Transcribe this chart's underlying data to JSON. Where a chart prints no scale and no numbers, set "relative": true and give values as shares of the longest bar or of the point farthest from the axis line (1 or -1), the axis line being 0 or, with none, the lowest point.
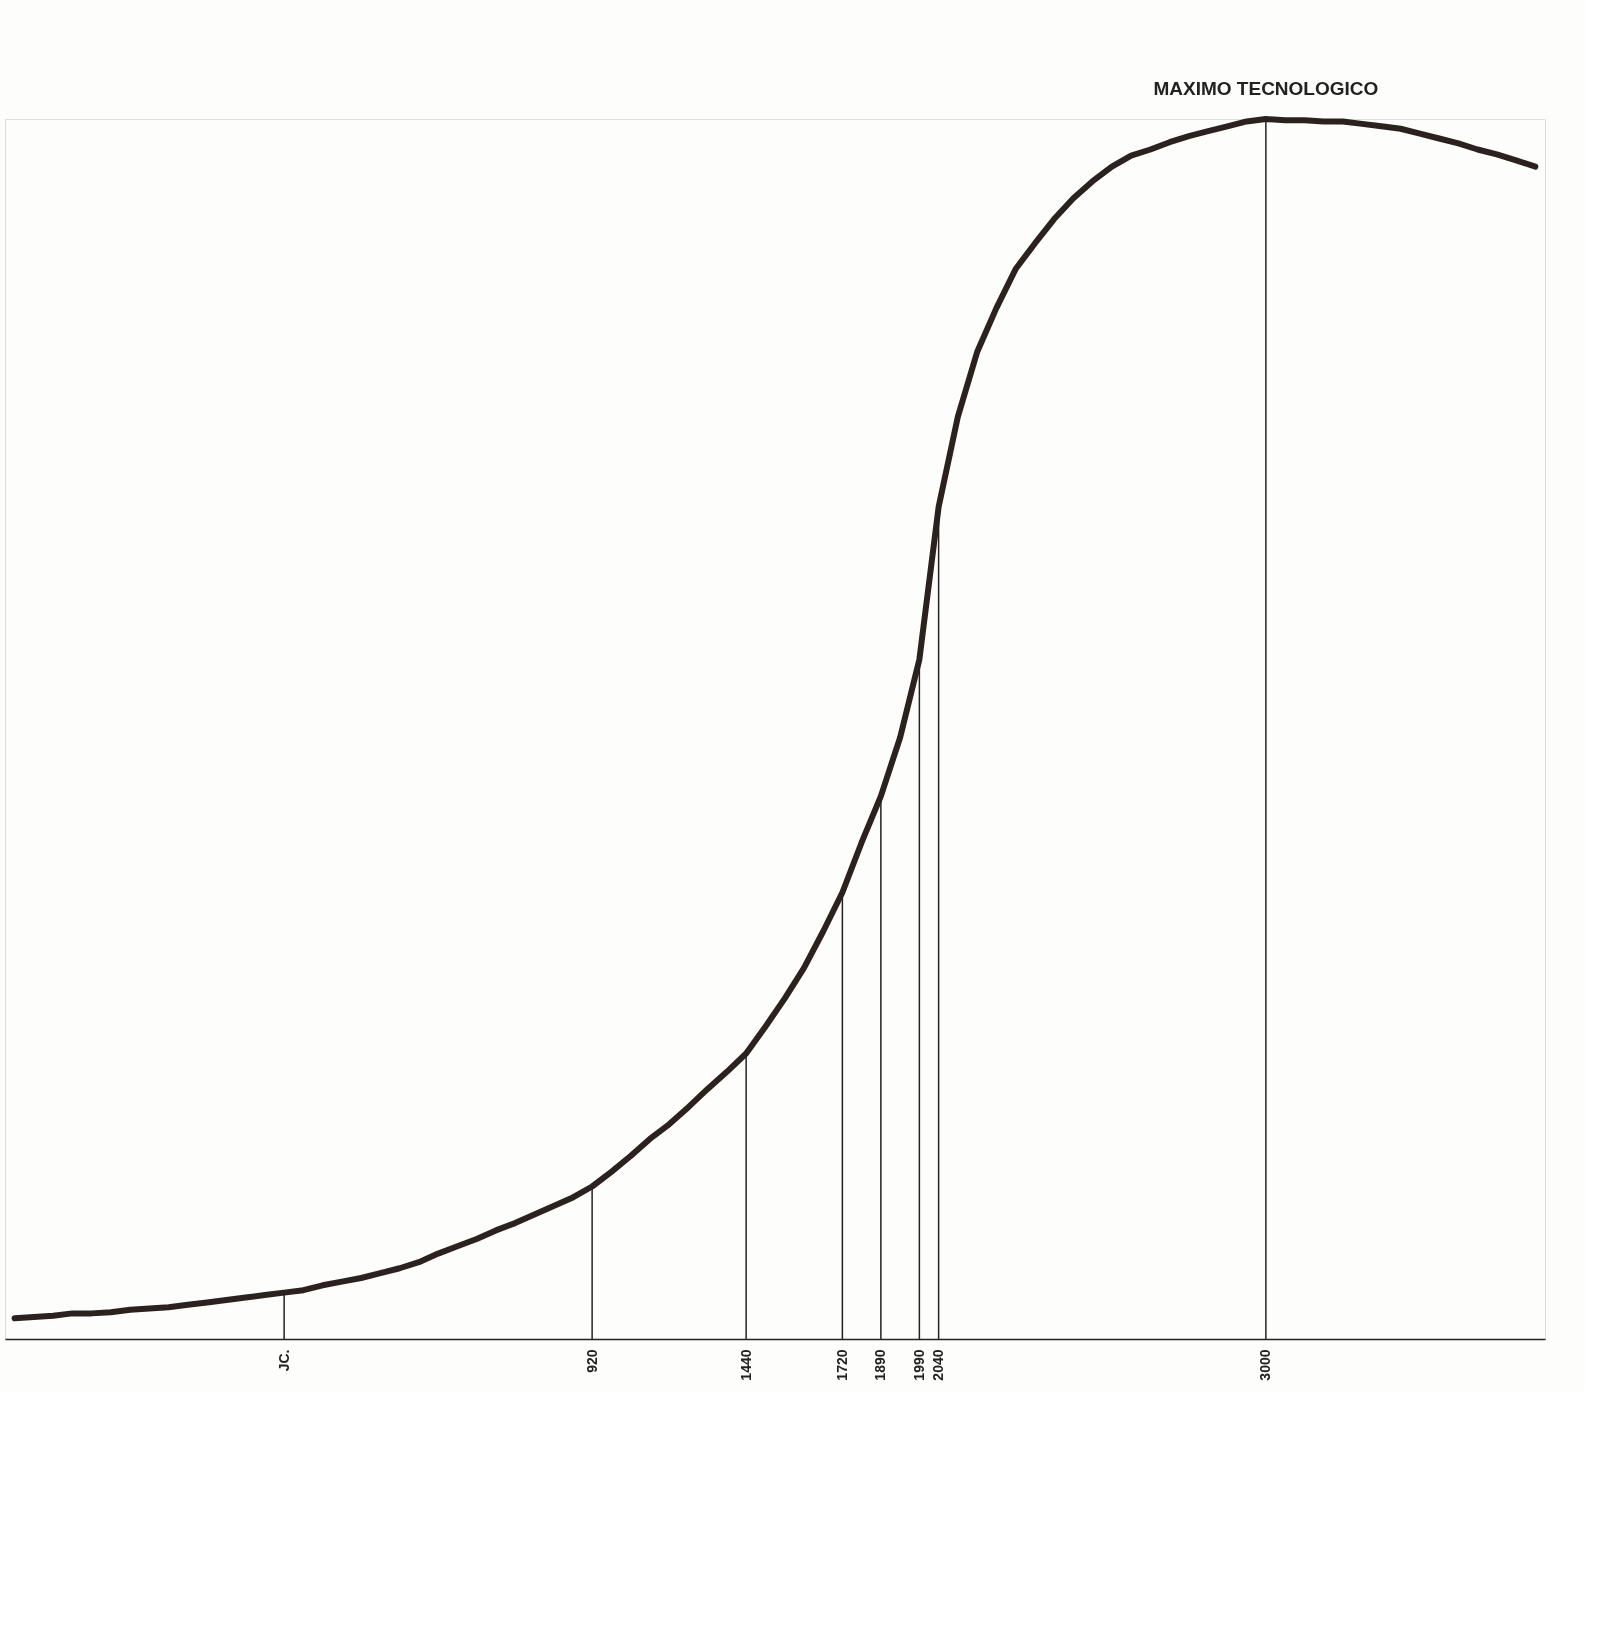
{
  "chart_data": {
    "type": "line",
    "relative": true,
    "categories": [
      null,
      null,
      null,
      null,
      null,
      null,
      null,
      null,
      null,
      null,
      null,
      null,
      null,
      null,
      "JC.",
      null,
      null,
      null,
      null,
      null,
      null,
      null,
      null,
      null,
      null,
      null,
      null,
      null,
      null,
      null,
      "920",
      null,
      null,
      null,
      null,
      null,
      null,
      null,
      "1440",
      null,
      null,
      null,
      null,
      "1720",
      null,
      "1890",
      null,
      "1990",
      "2040",
      null,
      null,
      null,
      null,
      null,
      null,
      null,
      null,
      null,
      null,
      null,
      null,
      null,
      null,
      null,
      null,
      "3000",
      null,
      null,
      null,
      null,
      null,
      null,
      null,
      null,
      null,
      null,
      null,
      null,
      null,
      null
    ],
    "series": [
      {
        "color": "#2b2220",
        "values": [
          0.017,
          0.018,
          0.019,
          0.021,
          0.021,
          0.022,
          0.024,
          0.025,
          0.026,
          0.028,
          0.03,
          0.032,
          0.034,
          0.036,
          0.038,
          0.04,
          0.044,
          0.047,
          0.05,
          0.054,
          0.058,
          0.063,
          0.07,
          0.076,
          0.082,
          0.089,
          0.095,
          0.102,
          0.109,
          0.116,
          0.125,
          0.137,
          0.15,
          0.164,
          0.176,
          0.19,
          0.205,
          0.219,
          0.234,
          0.256,
          0.279,
          0.304,
          0.334,
          0.366,
          0.407,
          0.445,
          0.493,
          0.557,
          0.682,
          0.756,
          0.809,
          0.845,
          0.877,
          0.898,
          0.918,
          0.935,
          0.949,
          0.961,
          0.97,
          0.975,
          0.981,
          0.986,
          0.99,
          0.994,
          0.998,
          1.0,
          0.999,
          0.999,
          0.998,
          0.998,
          0.996,
          0.994,
          0.992,
          0.988,
          0.984,
          0.98,
          0.975,
          0.971,
          0.966,
          0.961
        ]
      },
      {
        "type": "bar",
        "color": "#222222",
        "values": [
          null,
          null,
          null,
          null,
          null,
          null,
          null,
          null,
          null,
          null,
          null,
          null,
          null,
          null,
          0.038,
          null,
          null,
          null,
          null,
          null,
          null,
          null,
          null,
          null,
          null,
          null,
          null,
          null,
          null,
          null,
          0.125,
          null,
          null,
          null,
          null,
          null,
          null,
          null,
          0.234,
          null,
          null,
          null,
          null,
          0.366,
          null,
          0.445,
          null,
          0.557,
          0.682,
          null,
          null,
          null,
          null,
          null,
          null,
          null,
          null,
          null,
          null,
          null,
          null,
          null,
          null,
          null,
          null,
          1.0,
          null,
          null,
          null,
          null,
          null,
          null,
          null,
          null,
          null,
          null,
          null,
          null,
          null,
          null
        ]
      }
    ],
    "annotations": [
      {
        "text": "MAXIMO  TECNOLOGICO",
        "x": "3000",
        "y": 1.0
      }
    ]
  }
}
